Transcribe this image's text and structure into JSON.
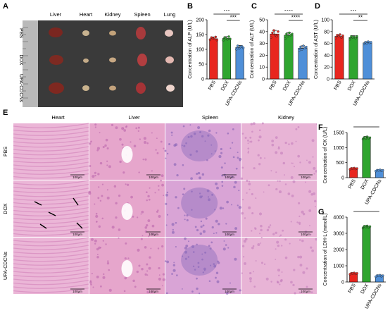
{
  "panel_letters": {
    "A": "A",
    "B": "B",
    "C": "C",
    "D": "D",
    "E": "E",
    "F": "F",
    "G": "G"
  },
  "organs_panel": {
    "columns": [
      "Liver",
      "Heart",
      "Kidney",
      "Spleen",
      "Lung"
    ],
    "rows": [
      "PBS",
      "DOX",
      "UPA-CDCNs"
    ]
  },
  "histology_panel": {
    "columns": [
      "Heart",
      "Liver",
      "Spleen",
      "Kidney"
    ],
    "rows": [
      "PBS",
      "DOX",
      "UPA-CDCNs"
    ],
    "scale_bar": "100μm"
  },
  "colors": {
    "PBS": "#e8261f",
    "DOX": "#2fa52f",
    "UPA-CDCNs": "#4f8fd8"
  },
  "chart_data": [
    {
      "id": "B",
      "type": "bar",
      "categories": [
        "PBS",
        "DOX",
        "UPA-CDCNs"
      ],
      "values": [
        136,
        137,
        107
      ],
      "points": [
        [
          132,
          140,
          138,
          135,
          142,
          131
        ],
        [
          130,
          140,
          136,
          134,
          143,
          135
        ],
        [
          100,
          112,
          103,
          108,
          110,
          105
        ]
      ],
      "errors": [
        6,
        6,
        6
      ],
      "ylabel": "Concentration of ALP (U/L)",
      "ylim": [
        0,
        200
      ],
      "yticks": [
        0,
        50,
        100,
        150,
        200
      ],
      "significance": [
        {
          "from": 0,
          "to": 2,
          "label": "***"
        },
        {
          "from": 1,
          "to": 2,
          "label": "***"
        }
      ]
    },
    {
      "id": "C",
      "type": "bar",
      "categories": [
        "PBS",
        "DOX",
        "UPA-CDCNs"
      ],
      "values": [
        38,
        37,
        26
      ],
      "points": [
        [
          35,
          39,
          41,
          37,
          36,
          40
        ],
        [
          34,
          38,
          36,
          39,
          37,
          38
        ],
        [
          24,
          27,
          25,
          28,
          26,
          27
        ]
      ],
      "errors": [
        3,
        2,
        2
      ],
      "ylabel": "Concentration of ALT (U/L)",
      "ylim": [
        0,
        50
      ],
      "yticks": [
        0,
        10,
        20,
        30,
        40,
        50
      ],
      "significance": [
        {
          "from": 0,
          "to": 2,
          "label": "****"
        },
        {
          "from": 1,
          "to": 2,
          "label": "****"
        }
      ]
    },
    {
      "id": "D",
      "type": "bar",
      "categories": [
        "PBS",
        "DOX",
        "UPA-CDCNs"
      ],
      "values": [
        72,
        70,
        61
      ],
      "points": [
        [
          69,
          74,
          72,
          75,
          70,
          73
        ],
        [
          67,
          72,
          70,
          71,
          69,
          72
        ],
        [
          59,
          62,
          60,
          63,
          61,
          62
        ]
      ],
      "errors": [
        3,
        3,
        2
      ],
      "ylabel": "Concentration of AST (U/L)",
      "ylim": [
        0,
        100
      ],
      "yticks": [
        0,
        20,
        40,
        60,
        80,
        100
      ],
      "significance": [
        {
          "from": 0,
          "to": 2,
          "label": "***"
        },
        {
          "from": 1,
          "to": 2,
          "label": "**"
        }
      ]
    },
    {
      "id": "F",
      "type": "bar",
      "categories": [
        "PBS",
        "DOX",
        "UPA-CDCNs"
      ],
      "values": [
        300,
        1320,
        240
      ],
      "points": [
        [
          280,
          310,
          300,
          320,
          290,
          305
        ],
        [
          1280,
          1340,
          1300,
          1360,
          1310,
          1330
        ],
        [
          220,
          250,
          240,
          260,
          230,
          245
        ]
      ],
      "errors": [
        30,
        50,
        25
      ],
      "ylabel": "Concentration of CK (U/L)",
      "ylim": [
        0,
        1500
      ],
      "yticks": [
        0,
        500,
        1000,
        1500
      ],
      "significance": [
        {
          "from": 0,
          "to": 1,
          "label": "****"
        },
        {
          "from": 1,
          "to": 2,
          "label": "****"
        }
      ]
    },
    {
      "id": "G",
      "type": "bar",
      "categories": [
        "PBS",
        "DOX",
        "UPA-CDCNs"
      ],
      "values": [
        520,
        3400,
        380
      ],
      "points": [
        [
          480,
          540,
          520,
          560,
          500,
          530
        ],
        [
          3320,
          3440,
          3380,
          3460,
          3360,
          3420
        ],
        [
          330,
          400,
          380,
          420,
          350,
          390
        ]
      ],
      "errors": [
        60,
        80,
        60
      ],
      "ylabel": "Concentration of LDH-L (mmol/L)",
      "ylim": [
        0,
        4000
      ],
      "yticks": [
        0,
        1000,
        2000,
        3000,
        4000
      ],
      "significance": [
        {
          "from": 0,
          "to": 1,
          "label": "****"
        },
        {
          "from": 1,
          "to": 2,
          "label": "****"
        }
      ]
    }
  ]
}
